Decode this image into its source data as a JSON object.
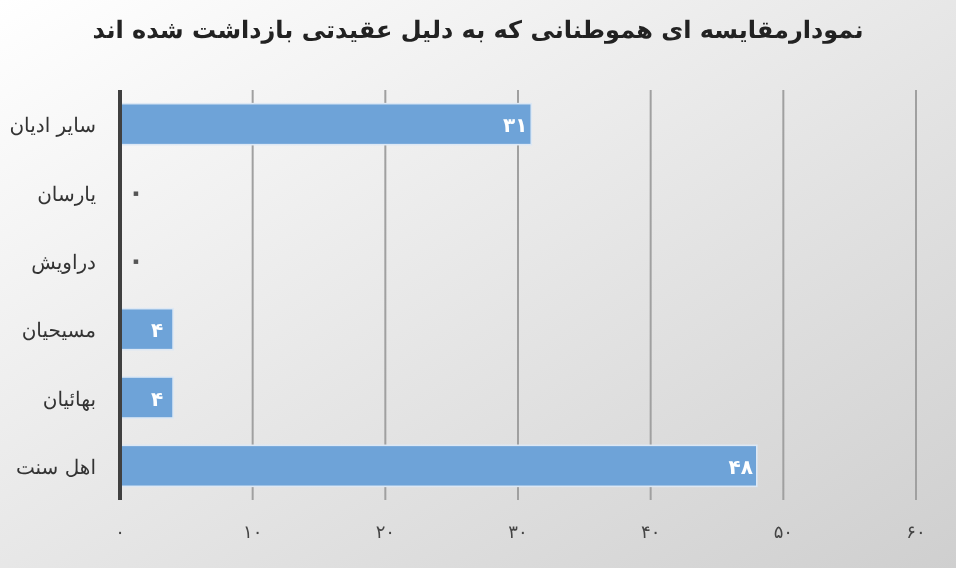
{
  "chart_data": {
    "type": "bar",
    "orientation": "horizontal",
    "title": "نمودارمقایسه ای  هموطنانی که به دلیل عقیدتی بازداشت شده اند",
    "categories": [
      "سایر ادیان",
      "یارسان",
      "دراویش",
      "مسیحیان",
      "بهائیان",
      "اهل سنت"
    ],
    "values": [
      31,
      0,
      0,
      4,
      4,
      48
    ],
    "value_labels": [
      "۳۱",
      "۰",
      "۰",
      "۴",
      "۴",
      "۴۸"
    ],
    "color": "#6ea3d8",
    "xlim": [
      0,
      60
    ],
    "xticks": [
      {
        "value": 0,
        "label": "۰"
      },
      {
        "value": 10,
        "label": "۱۰"
      },
      {
        "value": 20,
        "label": "۲۰"
      },
      {
        "value": 30,
        "label": "۳۰"
      },
      {
        "value": 40,
        "label": "۴۰"
      },
      {
        "value": 50,
        "label": "۵۰"
      },
      {
        "value": 60,
        "label": "۶۰"
      }
    ],
    "grid": "x"
  }
}
